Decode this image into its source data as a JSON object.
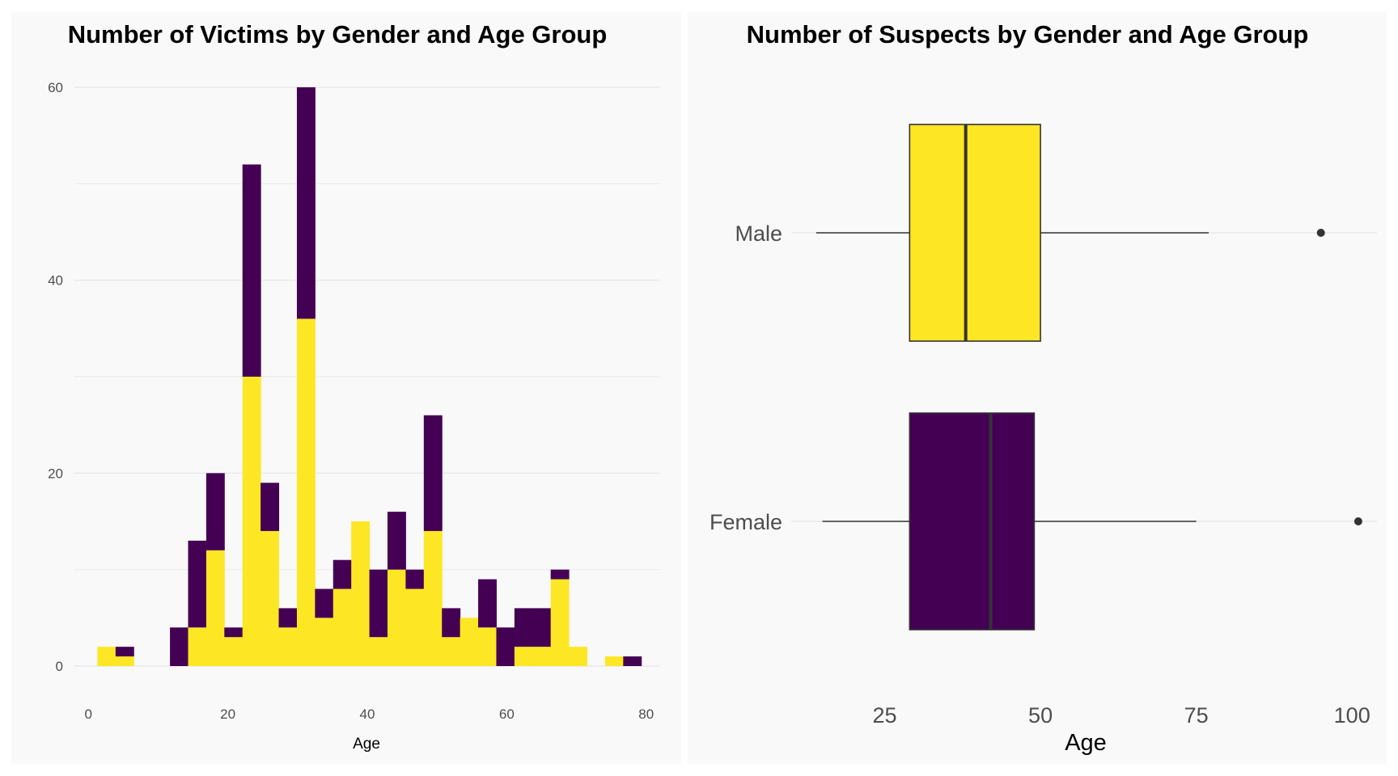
{
  "colors": {
    "male": "#FDE725",
    "female": "#440154",
    "panel_bg": "#F9F9F9",
    "box_line": "#333333"
  },
  "chart_data": [
    {
      "type": "bar",
      "stacked": true,
      "title": "Number of Victims by Gender and Age Group",
      "xlabel": "Age",
      "ylabel": "",
      "xlim": [
        -2,
        82
      ],
      "ylim": [
        0,
        60
      ],
      "xticks": [
        "0",
        "20",
        "40",
        "60",
        "80"
      ],
      "yticks": [
        "0",
        "20",
        "40",
        "60"
      ],
      "grid": true,
      "bins": [
        {
          "x0": 1.3,
          "x1": 3.9,
          "male": 2,
          "female": 0
        },
        {
          "x0": 3.9,
          "x1": 6.5,
          "male": 1,
          "female": 1
        },
        {
          "x0": 11.7,
          "x1": 14.3,
          "male": 0,
          "female": 4
        },
        {
          "x0": 14.3,
          "x1": 16.9,
          "male": 4,
          "female": 9
        },
        {
          "x0": 16.9,
          "x1": 19.5,
          "male": 12,
          "female": 8
        },
        {
          "x0": 19.5,
          "x1": 22.1,
          "male": 3,
          "female": 1
        },
        {
          "x0": 22.1,
          "x1": 24.7,
          "male": 30,
          "female": 22
        },
        {
          "x0": 24.7,
          "x1": 27.3,
          "male": 14,
          "female": 5
        },
        {
          "x0": 27.3,
          "x1": 29.9,
          "male": 4,
          "female": 2
        },
        {
          "x0": 29.9,
          "x1": 32.5,
          "male": 36,
          "female": 24
        },
        {
          "x0": 32.5,
          "x1": 35.1,
          "male": 5,
          "female": 3
        },
        {
          "x0": 35.1,
          "x1": 37.7,
          "male": 8,
          "female": 3
        },
        {
          "x0": 37.7,
          "x1": 40.3,
          "male": 15,
          "female": 0
        },
        {
          "x0": 40.3,
          "x1": 42.9,
          "male": 3,
          "female": 7
        },
        {
          "x0": 42.9,
          "x1": 45.5,
          "male": 10,
          "female": 6
        },
        {
          "x0": 45.5,
          "x1": 48.1,
          "male": 8,
          "female": 2
        },
        {
          "x0": 48.1,
          "x1": 50.7,
          "male": 14,
          "female": 12
        },
        {
          "x0": 50.7,
          "x1": 53.3,
          "male": 3,
          "female": 3
        },
        {
          "x0": 53.3,
          "x1": 55.9,
          "male": 5,
          "female": 0
        },
        {
          "x0": 55.9,
          "x1": 58.5,
          "male": 4,
          "female": 5
        },
        {
          "x0": 58.5,
          "x1": 61.1,
          "male": 0,
          "female": 4
        },
        {
          "x0": 61.1,
          "x1": 63.7,
          "male": 2,
          "female": 4
        },
        {
          "x0": 63.7,
          "x1": 66.3,
          "male": 2,
          "female": 4
        },
        {
          "x0": 66.3,
          "x1": 68.9,
          "male": 9,
          "female": 1
        },
        {
          "x0": 68.9,
          "x1": 71.5,
          "male": 2,
          "female": 0
        },
        {
          "x0": 74.1,
          "x1": 76.7,
          "male": 1,
          "female": 0
        },
        {
          "x0": 76.7,
          "x1": 79.3,
          "male": 0,
          "female": 1
        }
      ]
    },
    {
      "type": "box",
      "title": "Number of Suspects by Gender and Age Group",
      "xlabel": "Age",
      "xlim": [
        10,
        104
      ],
      "xticks": [
        "25",
        "50",
        "75",
        "100"
      ],
      "categories": [
        "Male",
        "Female"
      ],
      "grid": true,
      "boxes": [
        {
          "label": "Male",
          "whisker_low": 14,
          "q1": 29,
          "median": 38,
          "q3": 50,
          "whisker_high": 77,
          "outliers": [
            95
          ],
          "fill": "#FDE725"
        },
        {
          "label": "Female",
          "whisker_low": 15,
          "q1": 29,
          "median": 42,
          "q3": 49,
          "whisker_high": 75,
          "outliers": [
            101
          ],
          "fill": "#440154"
        }
      ]
    }
  ]
}
